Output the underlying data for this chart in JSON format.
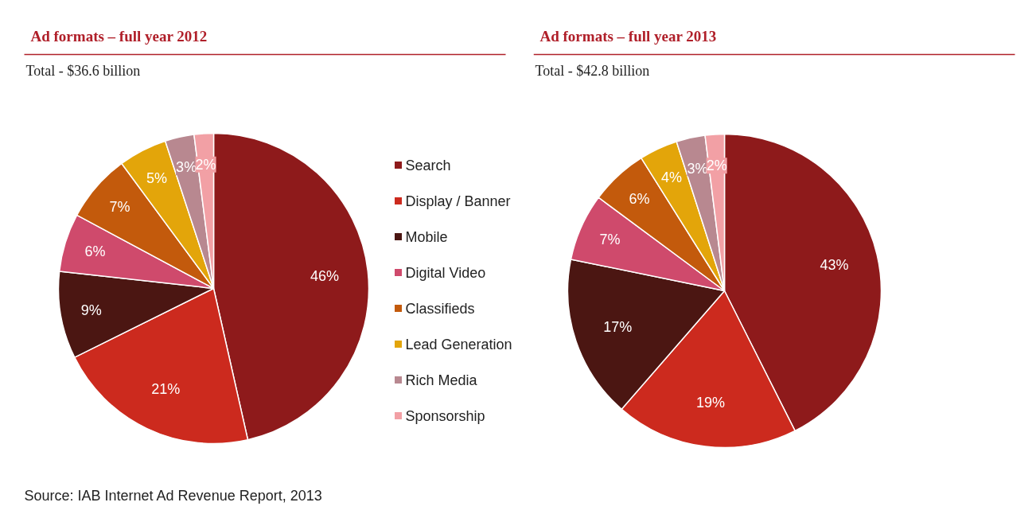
{
  "chart_data": [
    {
      "type": "pie",
      "title": "Ad formats – full year 2012",
      "subtitle": "Total - $36.6 billion",
      "categories": [
        "Search",
        "Display / Banner",
        "Mobile",
        "Digital Video",
        "Classifieds",
        "Lead Generation",
        "Rich Media",
        "Sponsorship"
      ],
      "values": [
        46,
        21,
        9,
        6,
        7,
        5,
        3,
        2
      ],
      "value_labels": [
        "46%",
        "21%",
        "9%",
        "6%",
        "7%",
        "5%",
        "3%",
        "2%"
      ],
      "colors": [
        "#8e1a1b",
        "#cc2a1e",
        "#4b1612",
        "#cf4a6c",
        "#c35a0c",
        "#e3a50a",
        "#b88890",
        "#f2a0a5"
      ],
      "legend": "right",
      "annotations": [
        "Source: IAB Internet Ad Revenue Report, 2013"
      ]
    },
    {
      "type": "pie",
      "title": "Ad formats – full year 2013",
      "subtitle": "Total - $42.8 billion",
      "values": [
        43,
        19,
        17,
        7,
        6,
        4,
        3,
        2
      ],
      "value_labels": [
        "43%",
        "19%",
        "17%",
        "7%",
        "6%",
        "4%",
        "3%",
        "2%"
      ],
      "colors": [
        "#8e1a1b",
        "#cc2a1e",
        "#4b1612",
        "#cf4a6c",
        "#c35a0c",
        "#e3a50a",
        "#b88890",
        "#f2a0a5"
      ]
    }
  ]
}
